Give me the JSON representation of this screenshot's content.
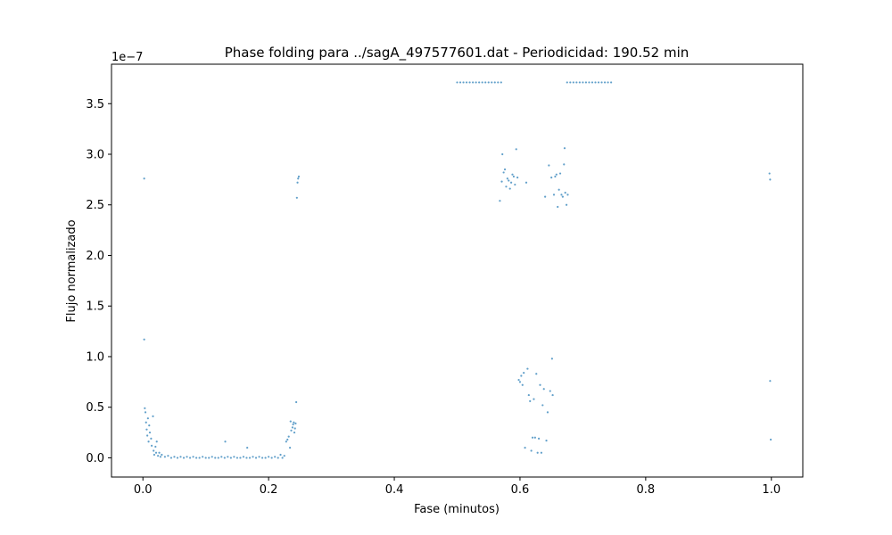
{
  "chart_data": {
    "type": "scatter",
    "title": "Phase folding para ../sagA_497577601.dat - Periodicidad: 190.52 min",
    "xlabel": "Fase (minutos)",
    "ylabel": "Flujo normalizado",
    "y_offset_label": "1e−7",
    "xlim": [
      -0.05,
      1.05
    ],
    "ylim": [
      -1.9e-08,
      3.89e-07
    ],
    "x_ticks": [
      0.0,
      0.2,
      0.4,
      0.6,
      0.8,
      1.0
    ],
    "x_tick_labels": [
      "0.0",
      "0.2",
      "0.4",
      "0.6",
      "0.8",
      "1.0"
    ],
    "y_ticks": [
      0,
      5e-08,
      1e-07,
      1.5e-07,
      2e-07,
      2.5e-07,
      3e-07,
      3.5e-07
    ],
    "y_tick_labels": [
      "0.0",
      "0.5",
      "1.0",
      "1.5",
      "2.0",
      "2.5",
      "3.0",
      "3.5"
    ],
    "grid": false,
    "marker_color": "#1f77b4",
    "series": [
      {
        "points": [
          [
            0.002,
            2.76e-07
          ],
          [
            0.002,
            1.17e-07
          ],
          [
            0.003,
            4.9e-08
          ],
          [
            0.004,
            4.5e-08
          ],
          [
            0.005,
            3.5e-08
          ],
          [
            0.006,
            2.8e-08
          ],
          [
            0.007,
            2.2e-08
          ],
          [
            0.008,
            3.9e-08
          ],
          [
            0.009,
            1.6e-08
          ],
          [
            0.01,
            3.2e-08
          ],
          [
            0.011,
            2.5e-08
          ],
          [
            0.013,
            1.9e-08
          ],
          [
            0.014,
            1.2e-08
          ],
          [
            0.016,
            4.1e-08
          ],
          [
            0.017,
            7e-09
          ],
          [
            0.018,
            3e-09
          ],
          [
            0.02,
            1.1e-08
          ],
          [
            0.021,
            5e-09
          ],
          [
            0.022,
            1.6e-08
          ],
          [
            0.024,
            2e-09
          ],
          [
            0.026,
            5e-09
          ],
          [
            0.028,
            1e-09
          ],
          [
            0.03,
            3e-09
          ],
          [
            0.035,
            1e-09
          ],
          [
            0.04,
            2e-09
          ],
          [
            0.045,
            0
          ],
          [
            0.05,
            1e-09
          ],
          [
            0.055,
            0
          ],
          [
            0.06,
            1e-09
          ],
          [
            0.065,
            0
          ],
          [
            0.07,
            1e-09
          ],
          [
            0.075,
            0
          ],
          [
            0.08,
            1e-09
          ],
          [
            0.085,
            0
          ],
          [
            0.09,
            0
          ],
          [
            0.095,
            1e-09
          ],
          [
            0.1,
            0
          ],
          [
            0.105,
            0
          ],
          [
            0.11,
            1e-09
          ],
          [
            0.115,
            0
          ],
          [
            0.12,
            0
          ],
          [
            0.125,
            1e-09
          ],
          [
            0.13,
            0
          ],
          [
            0.131,
            1.6e-08
          ],
          [
            0.135,
            1e-09
          ],
          [
            0.14,
            0
          ],
          [
            0.145,
            1e-09
          ],
          [
            0.15,
            0
          ],
          [
            0.155,
            0
          ],
          [
            0.16,
            1e-09
          ],
          [
            0.165,
            0
          ],
          [
            0.166,
            1e-08
          ],
          [
            0.17,
            0
          ],
          [
            0.175,
            1e-09
          ],
          [
            0.18,
            0
          ],
          [
            0.185,
            1e-09
          ],
          [
            0.19,
            0
          ],
          [
            0.195,
            0
          ],
          [
            0.2,
            1e-09
          ],
          [
            0.205,
            0
          ],
          [
            0.21,
            1e-09
          ],
          [
            0.215,
            0
          ],
          [
            0.219,
            3e-09
          ],
          [
            0.222,
            0
          ],
          [
            0.225,
            2e-09
          ],
          [
            0.228,
            1.6e-08
          ],
          [
            0.23,
            1.8e-08
          ],
          [
            0.232,
            2.1e-08
          ],
          [
            0.234,
            1e-08
          ],
          [
            0.235,
            3.6e-08
          ],
          [
            0.236,
            2.7e-08
          ],
          [
            0.238,
            3e-08
          ],
          [
            0.239,
            3.3e-08
          ],
          [
            0.24,
            3.5e-08
          ],
          [
            0.241,
            2.5e-08
          ],
          [
            0.242,
            2.9e-08
          ],
          [
            0.243,
            3.4e-08
          ],
          [
            0.244,
            5.5e-08
          ],
          [
            0.245,
            2.57e-07
          ],
          [
            0.246,
            2.72e-07
          ],
          [
            0.247,
            2.76e-07
          ],
          [
            0.248,
            2.78e-07
          ],
          [
            0.5,
            3.71e-07
          ],
          [
            0.505,
            3.71e-07
          ],
          [
            0.51,
            3.71e-07
          ],
          [
            0.515,
            3.71e-07
          ],
          [
            0.52,
            3.71e-07
          ],
          [
            0.525,
            3.71e-07
          ],
          [
            0.53,
            3.71e-07
          ],
          [
            0.535,
            3.71e-07
          ],
          [
            0.54,
            3.71e-07
          ],
          [
            0.545,
            3.71e-07
          ],
          [
            0.55,
            3.71e-07
          ],
          [
            0.555,
            3.71e-07
          ],
          [
            0.56,
            3.71e-07
          ],
          [
            0.565,
            3.71e-07
          ],
          [
            0.57,
            3.71e-07
          ],
          [
            0.568,
            2.54e-07
          ],
          [
            0.571,
            2.73e-07
          ],
          [
            0.572,
            3e-07
          ],
          [
            0.574,
            2.82e-07
          ],
          [
            0.576,
            2.85e-07
          ],
          [
            0.578,
            2.68e-07
          ],
          [
            0.58,
            2.76e-07
          ],
          [
            0.582,
            2.74e-07
          ],
          [
            0.584,
            2.66e-07
          ],
          [
            0.586,
            2.72e-07
          ],
          [
            0.588,
            2.8e-07
          ],
          [
            0.59,
            2.78e-07
          ],
          [
            0.592,
            2.7e-07
          ],
          [
            0.594,
            3.05e-07
          ],
          [
            0.596,
            2.77e-07
          ],
          [
            0.598,
            7.7e-08
          ],
          [
            0.6,
            7.5e-08
          ],
          [
            0.602,
            8.1e-08
          ],
          [
            0.604,
            7.2e-08
          ],
          [
            0.606,
            8.4e-08
          ],
          [
            0.608,
            1e-08
          ],
          [
            0.61,
            2.72e-07
          ],
          [
            0.612,
            8.8e-08
          ],
          [
            0.614,
            6.2e-08
          ],
          [
            0.616,
            5.6e-08
          ],
          [
            0.618,
            7e-09
          ],
          [
            0.62,
            2e-08
          ],
          [
            0.622,
            5.8e-08
          ],
          [
            0.624,
            2e-08
          ],
          [
            0.626,
            8.3e-08
          ],
          [
            0.628,
            5e-09
          ],
          [
            0.63,
            1.9e-08
          ],
          [
            0.632,
            7.2e-08
          ],
          [
            0.634,
            5e-09
          ],
          [
            0.636,
            5.2e-08
          ],
          [
            0.638,
            6.8e-08
          ],
          [
            0.64,
            2.58e-07
          ],
          [
            0.642,
            1.7e-08
          ],
          [
            0.644,
            4.5e-08
          ],
          [
            0.646,
            2.89e-07
          ],
          [
            0.648,
            6.6e-08
          ],
          [
            0.65,
            2.77e-07
          ],
          [
            0.651,
            9.8e-08
          ],
          [
            0.652,
            6.2e-08
          ],
          [
            0.654,
            2.6e-07
          ],
          [
            0.656,
            2.78e-07
          ],
          [
            0.658,
            2.8e-07
          ],
          [
            0.66,
            2.48e-07
          ],
          [
            0.662,
            2.65e-07
          ],
          [
            0.664,
            2.81e-07
          ],
          [
            0.666,
            2.6e-07
          ],
          [
            0.668,
            2.58e-07
          ],
          [
            0.67,
            2.9e-07
          ],
          [
            0.671,
            3.06e-07
          ],
          [
            0.672,
            2.62e-07
          ],
          [
            0.674,
            2.5e-07
          ],
          [
            0.676,
            2.6e-07
          ],
          [
            0.675,
            3.71e-07
          ],
          [
            0.68,
            3.71e-07
          ],
          [
            0.685,
            3.71e-07
          ],
          [
            0.69,
            3.71e-07
          ],
          [
            0.695,
            3.71e-07
          ],
          [
            0.7,
            3.71e-07
          ],
          [
            0.705,
            3.71e-07
          ],
          [
            0.71,
            3.71e-07
          ],
          [
            0.715,
            3.71e-07
          ],
          [
            0.72,
            3.71e-07
          ],
          [
            0.725,
            3.71e-07
          ],
          [
            0.73,
            3.71e-07
          ],
          [
            0.735,
            3.71e-07
          ],
          [
            0.74,
            3.71e-07
          ],
          [
            0.745,
            3.71e-07
          ],
          [
            0.997,
            2.81e-07
          ],
          [
            0.998,
            2.75e-07
          ],
          [
            0.998,
            7.6e-08
          ],
          [
            0.999,
            1.8e-08
          ]
        ]
      }
    ]
  }
}
